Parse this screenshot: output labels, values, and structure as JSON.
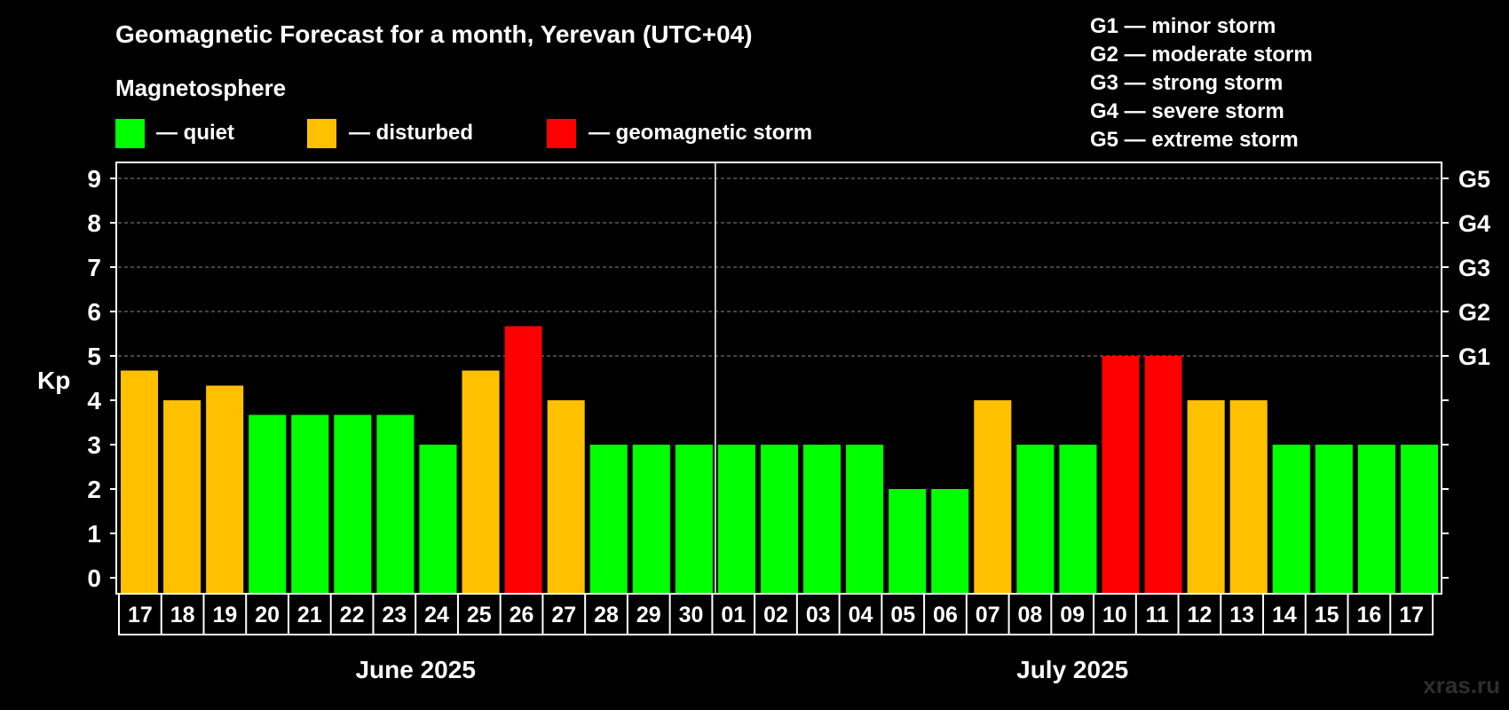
{
  "chart_data": {
    "type": "bar",
    "title": "Geomagnetic Forecast for a month, Yerevan (UTC+04)",
    "ylabel": "Kp",
    "ylim": [
      0,
      9
    ],
    "yticks": [
      "0",
      "1",
      "2",
      "3",
      "4",
      "5",
      "6",
      "7",
      "8",
      "9"
    ],
    "grid": true,
    "legend": {
      "heading": "Magnetosphere",
      "items": [
        {
          "label": "— quiet",
          "color": "#00ff00"
        },
        {
          "label": "— disturbed",
          "color": "#ffc000"
        },
        {
          "label": "— geomagnetic storm",
          "color": "#ff0000"
        }
      ]
    },
    "storm_scale": [
      "G1 — minor storm",
      "G2 — moderate storm",
      "G3 — strong storm",
      "G4 — severe storm",
      "G5 — extreme storm"
    ],
    "right_axis": [
      {
        "kp": 5,
        "label": "G1"
      },
      {
        "kp": 6,
        "label": "G2"
      },
      {
        "kp": 7,
        "label": "G3"
      },
      {
        "kp": 8,
        "label": "G4"
      },
      {
        "kp": 9,
        "label": "G5"
      }
    ],
    "categories": [
      "17",
      "18",
      "19",
      "20",
      "21",
      "22",
      "23",
      "24",
      "25",
      "26",
      "27",
      "28",
      "29",
      "30",
      "01",
      "02",
      "03",
      "04",
      "05",
      "06",
      "07",
      "08",
      "09",
      "10",
      "11",
      "12",
      "13",
      "14",
      "15",
      "16",
      "17"
    ],
    "values": [
      4.67,
      4,
      4.33,
      3.67,
      3.67,
      3.67,
      3.67,
      3,
      4.67,
      5.67,
      4,
      3,
      3,
      3,
      3,
      3,
      3,
      3,
      2,
      2,
      4,
      3,
      3,
      5,
      5,
      4,
      4,
      3,
      3,
      3,
      3
    ],
    "status": [
      "disturbed",
      "disturbed",
      "disturbed",
      "quiet",
      "quiet",
      "quiet",
      "quiet",
      "quiet",
      "disturbed",
      "storm",
      "disturbed",
      "quiet",
      "quiet",
      "quiet",
      "quiet",
      "quiet",
      "quiet",
      "quiet",
      "quiet",
      "quiet",
      "disturbed",
      "quiet",
      "quiet",
      "storm",
      "storm",
      "disturbed",
      "disturbed",
      "quiet",
      "quiet",
      "quiet",
      "quiet"
    ],
    "months": [
      {
        "label": "June 2025",
        "first_index": 0,
        "last_index": 13
      },
      {
        "label": "July 2025",
        "first_index": 14,
        "last_index": 30
      }
    ],
    "colors": {
      "quiet": "#00ff00",
      "disturbed": "#ffc000",
      "storm": "#ff0000"
    },
    "watermark": "xras.ru"
  }
}
